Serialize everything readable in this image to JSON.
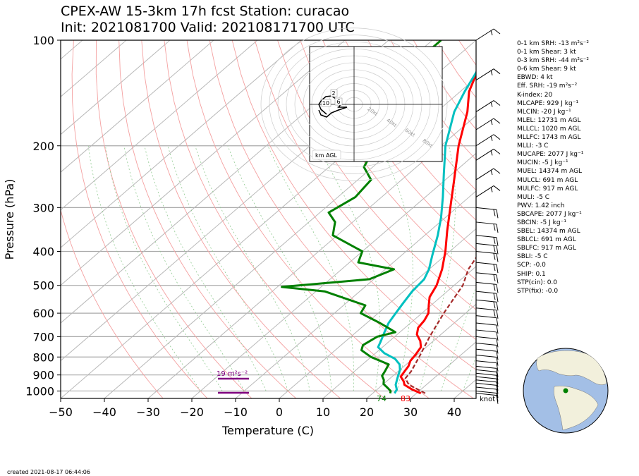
{
  "title": {
    "line1": "CPEX-AW 15-3km  17h fcst  Station: curacao",
    "line2": "Init: 2021081700  Valid: 202108171700 UTC"
  },
  "footer": "created 2021-08-17 06:44:06",
  "parameters": [
    "0-1 km SRH: -13 m²s⁻²",
    "0-1 km Shear: 3 kt",
    "0-3 km SRH: -44 m²s⁻²",
    "0-6 km Shear: 9 kt",
    "EBWD: 4 kt",
    "Eff. SRH: -19 m²s⁻²",
    "K-index: 20",
    "MLCAPE: 929 J kg⁻¹",
    "MLCIN: -20 J kg⁻¹",
    "MLEL: 12731 m AGL",
    "MLLCL: 1020 m AGL",
    "MLLFC: 1743 m AGL",
    "MLLI: -3 C",
    "MUCAPE: 2077 J kg⁻¹",
    "MUCIN: -5 J kg⁻¹",
    "MUEL: 14374 m AGL",
    "MULCL: 691 m AGL",
    "MULFC: 917 m AGL",
    "MULI: -5 C",
    "PWV: 1.42 inch",
    "SBCAPE: 2077 J kg⁻¹",
    "SBCIN: -5 J kg⁻¹",
    "SBEL: 14374 m AGL",
    "SBLCL: 691 m AGL",
    "SBLFC: 917 m AGL",
    "SBLI: -5 C",
    "SCP: -0.0",
    "SHIP: 0.1",
    "STP(cin): 0.0",
    "STP(fix): -0.0"
  ],
  "chart_data": {
    "type": "line",
    "xlabel": "Temperature (C)",
    "ylabel": "Pressure (hPa)",
    "xlim": [
      -50,
      45
    ],
    "ylim": [
      1050,
      100
    ],
    "x_ticks": [
      -50,
      -40,
      -30,
      -20,
      -10,
      0,
      10,
      20,
      30,
      40
    ],
    "y_ticks": [
      100,
      200,
      300,
      400,
      500,
      600,
      700,
      800,
      900,
      1000
    ],
    "log_y": true,
    "skewed": true,
    "grid": true,
    "series": [
      {
        "color": "#ff0000",
        "values": [
          [
            1015,
            31
          ],
          [
            990,
            28
          ],
          [
            960,
            25
          ],
          [
            940,
            24
          ],
          [
            910,
            22
          ],
          [
            880,
            21.5
          ],
          [
            850,
            21
          ],
          [
            820,
            20
          ],
          [
            790,
            19.6
          ],
          [
            750,
            18.8
          ],
          [
            720,
            17
          ],
          [
            690,
            14.5
          ],
          [
            660,
            13
          ],
          [
            630,
            12.5
          ],
          [
            600,
            11.5
          ],
          [
            570,
            9.5
          ],
          [
            540,
            7.5
          ],
          [
            500,
            6
          ],
          [
            450,
            3
          ],
          [
            400,
            -1
          ],
          [
            350,
            -6
          ],
          [
            300,
            -11.5
          ],
          [
            250,
            -18
          ],
          [
            200,
            -26
          ],
          [
            160,
            -33
          ],
          [
            140,
            -38
          ],
          [
            120,
            -42
          ],
          [
            100,
            -46
          ]
        ]
      },
      {
        "color": "#00c0c0",
        "values": [
          [
            1015,
            25
          ],
          [
            990,
            24.5
          ],
          [
            960,
            23
          ],
          [
            930,
            22
          ],
          [
            900,
            21
          ],
          [
            870,
            20
          ],
          [
            840,
            18.5
          ],
          [
            810,
            16
          ],
          [
            780,
            12
          ],
          [
            750,
            9
          ],
          [
            720,
            8
          ],
          [
            680,
            6.5
          ],
          [
            640,
            5
          ],
          [
            600,
            4
          ],
          [
            560,
            3
          ],
          [
            520,
            2
          ],
          [
            480,
            1.5
          ],
          [
            450,
            0
          ],
          [
            410,
            -3
          ],
          [
            360,
            -7
          ],
          [
            320,
            -11
          ],
          [
            280,
            -16
          ],
          [
            240,
            -22
          ],
          [
            200,
            -29
          ],
          [
            160,
            -36
          ],
          [
            140,
            -39
          ],
          [
            120,
            -42
          ],
          [
            100,
            -46
          ]
        ]
      },
      {
        "color": "#008000",
        "values": [
          [
            1015,
            24
          ],
          [
            1000,
            23.5
          ],
          [
            980,
            22
          ],
          [
            955,
            20
          ],
          [
            930,
            19
          ],
          [
            905,
            17.5
          ],
          [
            880,
            17
          ],
          [
            860,
            16.5
          ],
          [
            840,
            16
          ],
          [
            800,
            10
          ],
          [
            765,
            6
          ],
          [
            740,
            5
          ],
          [
            700,
            6
          ],
          [
            680,
            9
          ],
          [
            640,
            3
          ],
          [
            600,
            -4
          ],
          [
            570,
            -5
          ],
          [
            520,
            -18
          ],
          [
            505,
            -29
          ],
          [
            480,
            -11
          ],
          [
            450,
            -8
          ],
          [
            430,
            -18
          ],
          [
            400,
            -20
          ],
          [
            360,
            -31
          ],
          [
            330,
            -34
          ],
          [
            310,
            -38
          ],
          [
            280,
            -36
          ],
          [
            250,
            -37
          ],
          [
            230,
            -42
          ],
          [
            200,
            -45
          ],
          [
            180,
            -54
          ],
          [
            160,
            -55
          ],
          [
            140,
            -57
          ],
          [
            120,
            -58
          ],
          [
            100,
            -58
          ]
        ]
      },
      {
        "color": "#a52a2a",
        "dashed": true,
        "values": [
          [
            1015,
            32
          ],
          [
            960,
            26
          ],
          [
            920,
            23.5
          ],
          [
            880,
            23
          ],
          [
            800,
            21
          ],
          [
            700,
            18
          ],
          [
            600,
            15
          ],
          [
            500,
            12
          ],
          [
            450,
            9
          ],
          [
            400,
            7
          ],
          [
            350,
            3
          ],
          [
            300,
            -2
          ],
          [
            250,
            -9
          ],
          [
            200,
            -19
          ],
          [
            160,
            -28
          ],
          [
            140,
            -33
          ],
          [
            120,
            -39
          ],
          [
            100,
            -45
          ]
        ]
      }
    ],
    "surface_labels": {
      "temperature_f": "83",
      "dewpoint_f": "74"
    },
    "srh_label": "19 m²s⁻²",
    "hodograph": {
      "label": "km AGL",
      "ring_labels": [
        "20kt",
        "40kt",
        "60kt",
        "80kt"
      ],
      "height_labels": [
        "2",
        "10",
        "6"
      ]
    },
    "barb_unit_label": "knot"
  }
}
